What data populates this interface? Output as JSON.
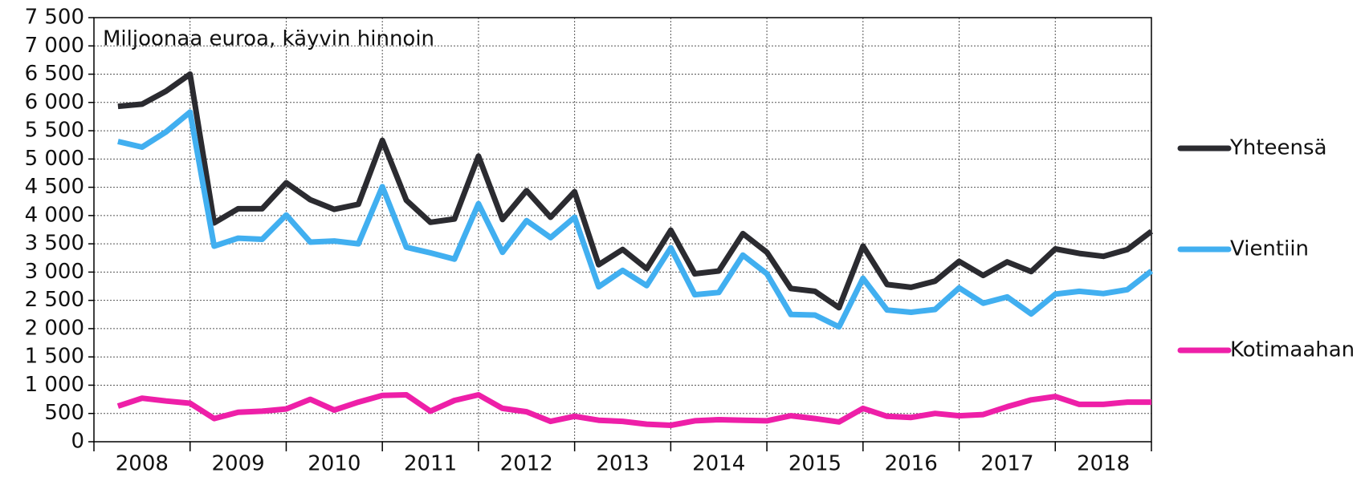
{
  "chart_data": {
    "type": "line",
    "annotation": "Miljoonaa euroa, käyvin hinnoin",
    "categories": [
      "2008",
      null,
      null,
      null,
      "2009",
      null,
      null,
      null,
      "2010",
      null,
      null,
      null,
      "2011",
      null,
      null,
      null,
      "2012",
      null,
      null,
      null,
      "2013",
      null,
      null,
      null,
      "2014",
      null,
      null,
      null,
      "2015",
      null,
      null,
      null,
      "2016",
      null,
      null,
      null,
      "2017",
      null,
      null,
      null,
      "2018",
      null,
      null,
      null
    ],
    "series": [
      {
        "name": "Yhteensä",
        "color": "#2b2b30",
        "values": [
          5930,
          5970,
          6200,
          6500,
          3870,
          4120,
          4120,
          4580,
          4280,
          4110,
          4200,
          5330,
          4270,
          3880,
          3940,
          5050,
          3930,
          4440,
          3970,
          4420,
          3130,
          3400,
          3060,
          3740,
          2970,
          3020,
          3680,
          3350,
          2710,
          2660,
          2370,
          3460,
          2780,
          2730,
          2840,
          3190,
          2940,
          3180,
          3010,
          3410,
          3330,
          3280,
          3400,
          3720
        ]
      },
      {
        "name": "Vientiin",
        "color": "#41aff0",
        "values": [
          5310,
          5210,
          5480,
          5830,
          3460,
          3600,
          3580,
          4010,
          3530,
          3550,
          3500,
          4510,
          3440,
          3340,
          3230,
          4210,
          3350,
          3910,
          3610,
          3970,
          2740,
          3030,
          2760,
          3430,
          2600,
          2640,
          3300,
          2970,
          2250,
          2240,
          2030,
          2890,
          2330,
          2290,
          2340,
          2720,
          2450,
          2560,
          2260,
          2610,
          2660,
          2620,
          2690,
          3020
        ]
      },
      {
        "name": "Kotimaahan",
        "color": "#ee1fa8",
        "values": [
          630,
          770,
          720,
          680,
          410,
          520,
          540,
          580,
          750,
          560,
          700,
          820,
          830,
          540,
          730,
          830,
          590,
          530,
          360,
          450,
          380,
          360,
          310,
          290,
          370,
          390,
          380,
          370,
          460,
          410,
          350,
          590,
          450,
          430,
          500,
          460,
          480,
          620,
          740,
          800,
          660,
          660,
          700,
          700
        ]
      }
    ],
    "ylim": [
      0,
      7500
    ],
    "yticks": [
      0,
      500,
      {
        "value": 1000,
        "label": "1 000"
      },
      {
        "value": 1500,
        "label": "1 500"
      },
      {
        "value": 2000,
        "label": "2 000"
      },
      {
        "value": 2500,
        "label": "2 500"
      },
      {
        "value": 3000,
        "label": "3 000"
      },
      {
        "value": 3500,
        "label": "3 500"
      },
      {
        "value": 4000,
        "label": "4 000"
      },
      {
        "value": 4500,
        "label": "4 500"
      },
      {
        "value": 5000,
        "label": "5 000"
      },
      {
        "value": 5500,
        "label": "5 500"
      },
      {
        "value": 6000,
        "label": "6 000"
      },
      {
        "value": 6500,
        "label": "6 500"
      },
      {
        "value": 7000,
        "label": "7 000"
      },
      {
        "value": 7500,
        "label": "7 500"
      }
    ],
    "grid": true,
    "legend": "right"
  }
}
